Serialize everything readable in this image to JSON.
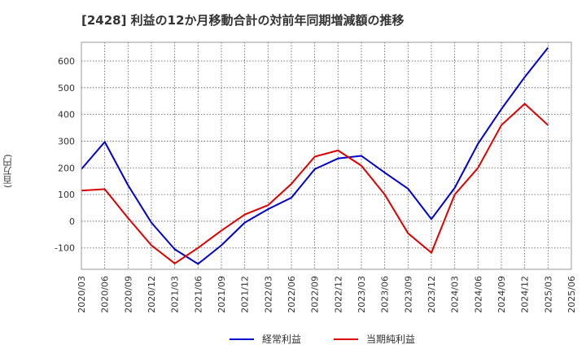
{
  "chart_data": {
    "type": "line",
    "title": "[2428]  利益の12か月移動合計の対前年同期増減額の推移",
    "ylabel": "(百万円)",
    "xlabel": "",
    "ylim": [
      -180,
      670
    ],
    "yticks": [
      -100,
      0,
      100,
      200,
      300,
      400,
      500,
      600
    ],
    "categories": [
      "2020/03",
      "2020/06",
      "2020/09",
      "2020/12",
      "2021/03",
      "2021/06",
      "2021/09",
      "2021/12",
      "2022/03",
      "2022/06",
      "2022/09",
      "2022/12",
      "2023/03",
      "2023/06",
      "2023/09",
      "2023/12",
      "2024/03",
      "2024/06",
      "2024/09",
      "2024/12",
      "2025/03",
      "2025/06"
    ],
    "grid": true,
    "legend_position": "bottom",
    "series": [
      {
        "name": "経常利益",
        "color": "#0000cc",
        "values": [
          195,
          297,
          135,
          -5,
          -105,
          -160,
          -90,
          -5,
          45,
          88,
          195,
          235,
          245,
          182,
          122,
          8,
          125,
          290,
          420,
          540,
          650,
          null
        ]
      },
      {
        "name": "当期純利益",
        "color": "#dd0000",
        "values": [
          115,
          120,
          12,
          -90,
          -158,
          -100,
          -35,
          25,
          60,
          140,
          242,
          265,
          208,
          100,
          -45,
          -118,
          100,
          200,
          360,
          440,
          360,
          null
        ]
      }
    ]
  }
}
